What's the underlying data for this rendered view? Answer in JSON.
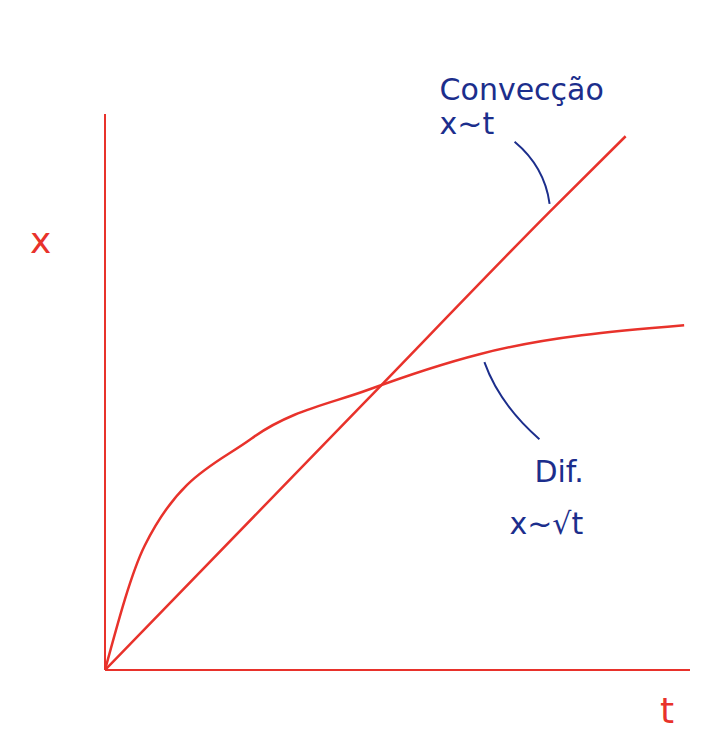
{
  "chart_data": {
    "type": "line",
    "x_label": "t",
    "y_label": "x",
    "xlim": [
      0,
      10
    ],
    "ylim": [
      0,
      12.5
    ],
    "tick_labels": false,
    "grid": false,
    "legend": false,
    "series": [
      {
        "name": "Convecção",
        "formula": "x~t",
        "color": "#e8322b",
        "x": [
          0,
          4.5,
          7.6,
          8.9
        ],
        "values": [
          0,
          6.1,
          10.3,
          12.0
        ]
      },
      {
        "name": "Dif.",
        "formula": "x~√t",
        "color": "#e8322b",
        "x": [
          0,
          0.68,
          2.5,
          4.5,
          6.4,
          9.9
        ],
        "values": [
          0,
          2.8,
          5.2,
          6.3,
          7.1,
          7.75
        ]
      }
    ]
  }
}
